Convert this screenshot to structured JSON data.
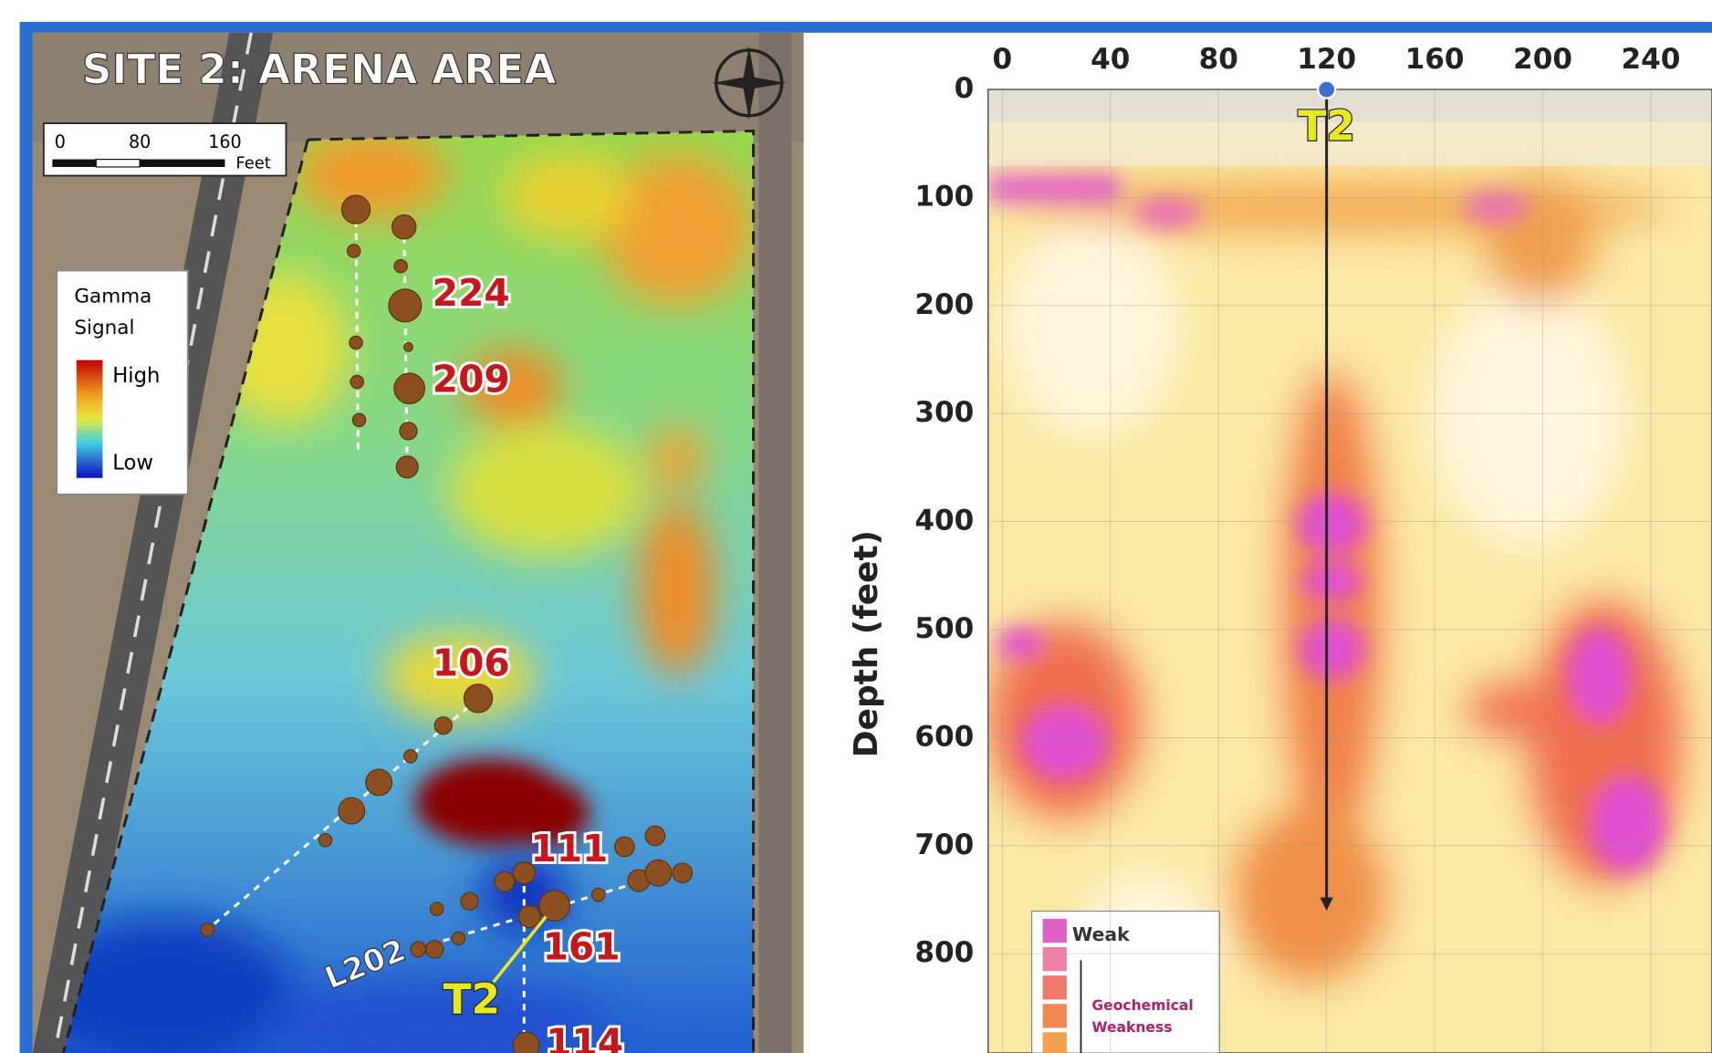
{
  "map": {
    "title": "SITE 2: ARENA AREA",
    "scale_labels": [
      "0",
      "80",
      "160"
    ],
    "scale_unit": "Feet",
    "legend": {
      "title_lines": [
        "Gamma",
        "Signal"
      ],
      "high": "High",
      "low": "Low"
    },
    "labels": [
      "224",
      "209",
      "106",
      "111",
      "161",
      "114"
    ],
    "line_label": "L202",
    "target_label": "T2"
  },
  "profile": {
    "xticks": [
      0,
      40,
      80,
      120,
      160,
      200,
      240
    ],
    "yticks": [
      0,
      100,
      200,
      300,
      400,
      500,
      600,
      700,
      800
    ],
    "ylabel": "Depth (feet)",
    "target_label": "T2",
    "target_x": 120,
    "target_bottom": 760,
    "legend": {
      "weak": "Weak",
      "lines": [
        "Geochemical",
        "Weakness"
      ]
    }
  }
}
